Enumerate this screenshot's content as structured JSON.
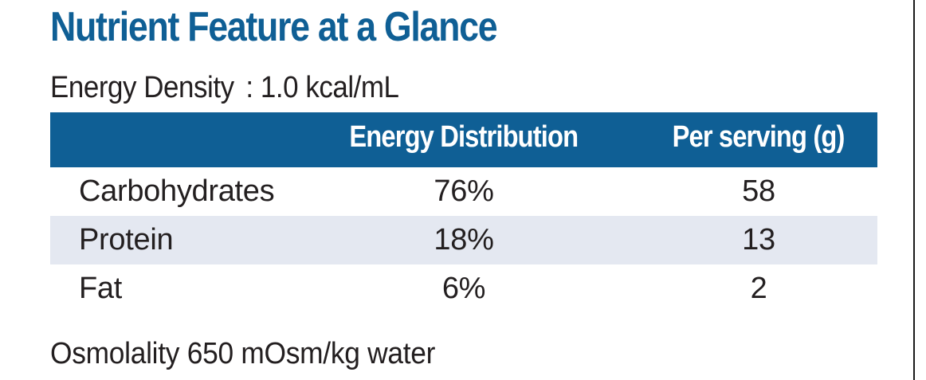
{
  "title": "Nutrient Feature at a Glance",
  "energy_density": {
    "label": "Energy Density",
    "value": ": 1.0 kcal/mL"
  },
  "table": {
    "headers": {
      "nutrient": "",
      "energy_distribution": "Energy Distribution",
      "per_serving": "Per serving (g)"
    },
    "rows": [
      {
        "nutrient": "Carbohydrates",
        "energy_distribution": "76%",
        "per_serving": "58"
      },
      {
        "nutrient": "Protein",
        "energy_distribution": "18%",
        "per_serving": "13"
      },
      {
        "nutrient": "Fat",
        "energy_distribution": "6%",
        "per_serving": "2"
      }
    ]
  },
  "osmolality": "Osmolality 650 mOsm/kg water",
  "colors": {
    "title_blue": "#0f5f95",
    "header_bg": "#0f5f95",
    "shaded_row": "#e4e8f1",
    "text": "#231f20"
  }
}
